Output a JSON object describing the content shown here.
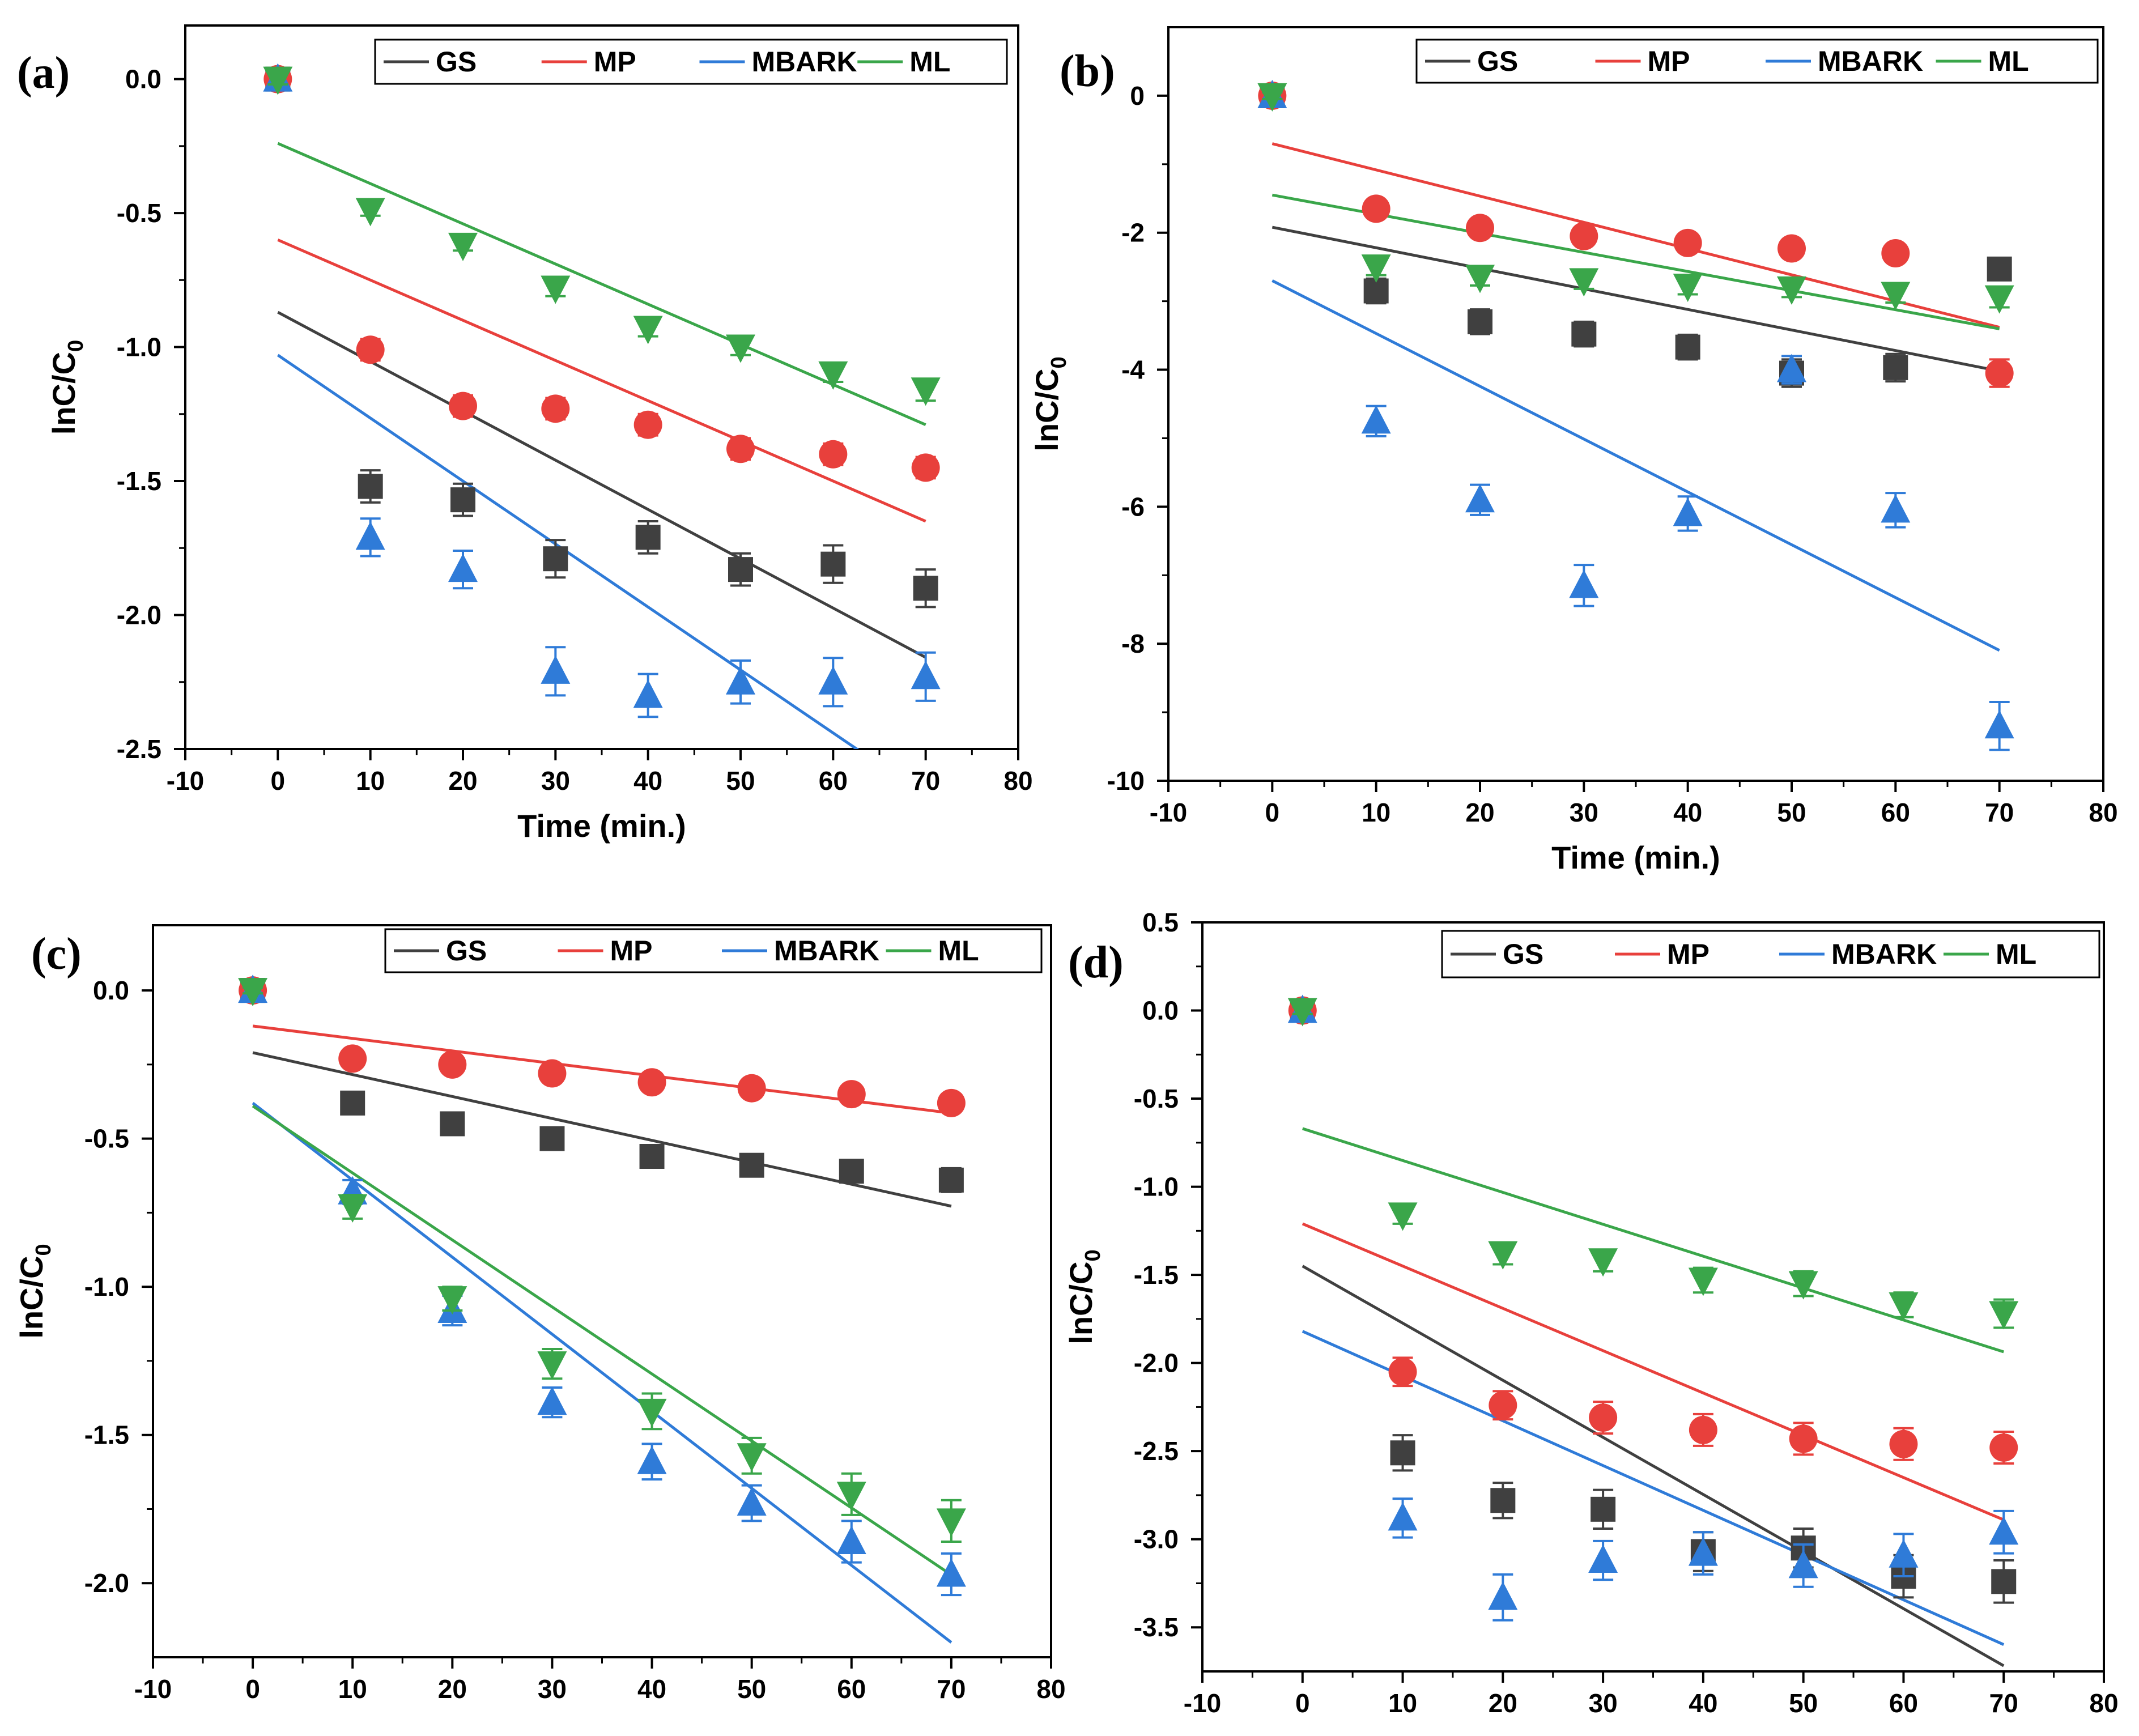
{
  "figure": {
    "series_names": [
      "GS",
      "MP",
      "MBARK",
      "ML"
    ],
    "series_colors": {
      "GS": "#404040",
      "MP": "#e8403c",
      "MBARK": "#2f7bd8",
      "ML": "#3aa64a"
    }
  },
  "chart_data": [
    {
      "type": "scatter",
      "panel_label": "(a)",
      "xlabel": "Time (min.)",
      "ylabel": "lnC/C0",
      "xlim": [
        -10,
        80
      ],
      "ylim": [
        -2.5,
        0.2
      ],
      "xticks": [
        -10,
        0,
        10,
        20,
        30,
        40,
        50,
        60,
        70,
        80
      ],
      "yticks": [
        0.0,
        -0.5,
        -1.0,
        -1.5,
        -2.0,
        -2.5
      ],
      "ytick_labels": [
        "0.0",
        "-0.5",
        "-1.0",
        "-1.5",
        "-2.0",
        "-2.5"
      ],
      "legend": [
        "GS",
        "MP",
        "MBARK",
        "ML"
      ],
      "legend_position": "top-right",
      "x": [
        0,
        10,
        20,
        30,
        40,
        50,
        60,
        70
      ],
      "series": [
        {
          "name": "GS",
          "marker": "square",
          "values": [
            0,
            -1.52,
            -1.57,
            -1.79,
            -1.71,
            -1.83,
            -1.81,
            -1.9
          ],
          "err": [
            0.02,
            0.06,
            0.06,
            0.07,
            0.06,
            0.06,
            0.07,
            0.07
          ],
          "fit": {
            "intercept": -0.87,
            "slope": -0.0184
          }
        },
        {
          "name": "MP",
          "marker": "circle",
          "values": [
            0,
            -1.01,
            -1.22,
            -1.23,
            -1.29,
            -1.38,
            -1.4,
            -1.45
          ],
          "err": [
            0.02,
            0.04,
            0.04,
            0.04,
            0.04,
            0.04,
            0.04,
            0.04
          ],
          "fit": {
            "intercept": -0.6,
            "slope": -0.015
          }
        },
        {
          "name": "MBARK",
          "marker": "triangle-up",
          "values": [
            0,
            -1.71,
            -1.83,
            -2.21,
            -2.3,
            -2.25,
            -2.25,
            -2.23
          ],
          "err": [
            0.02,
            0.07,
            0.07,
            0.09,
            0.08,
            0.08,
            0.09,
            0.09
          ],
          "fit": {
            "intercept": -1.03,
            "slope": -0.0235
          }
        },
        {
          "name": "ML",
          "marker": "triangle-down",
          "values": [
            0,
            -0.49,
            -0.62,
            -0.78,
            -0.93,
            -1.0,
            -1.1,
            -1.16
          ],
          "err": [
            0.02,
            0.02,
            0.02,
            0.03,
            0.03,
            0.03,
            0.03,
            0.04
          ],
          "fit": {
            "intercept": -0.24,
            "slope": -0.015
          }
        }
      ]
    },
    {
      "type": "scatter",
      "panel_label": "(b)",
      "xlabel": "Time (min.)",
      "ylabel": "lnC/C0",
      "xlim": [
        -10,
        80
      ],
      "ylim": [
        -10,
        1
      ],
      "xticks": [
        -10,
        0,
        10,
        20,
        30,
        40,
        50,
        60,
        70,
        80
      ],
      "yticks": [
        0,
        -2,
        -4,
        -6,
        -8,
        -10
      ],
      "ytick_labels": [
        "0",
        "-2",
        "-4",
        "-6",
        "-8",
        "-10"
      ],
      "legend": [
        "GS",
        "MP",
        "MBARK",
        "ML"
      ],
      "legend_position": "top-right",
      "x": [
        0,
        10,
        20,
        30,
        40,
        50,
        60,
        70
      ],
      "series": [
        {
          "name": "GS",
          "marker": "square",
          "values": [
            0,
            -2.85,
            -3.3,
            -3.48,
            -3.67,
            -4.05,
            -3.97,
            -2.53
          ],
          "err": [
            0.05,
            0.18,
            0.18,
            0.18,
            0.18,
            0.2,
            0.2,
            0.12
          ],
          "fit": {
            "intercept": -1.92,
            "slope": -0.03
          }
        },
        {
          "name": "MP",
          "marker": "circle",
          "values": [
            0,
            -1.65,
            -1.93,
            -2.05,
            -2.15,
            -2.23,
            -2.3,
            -4.05
          ],
          "err": [
            0.05,
            0.09,
            0.09,
            0.09,
            0.09,
            0.09,
            0.09,
            0.2
          ],
          "fit": {
            "intercept": -0.7,
            "slope": -0.0383
          }
        },
        {
          "name": "MBARK",
          "marker": "triangle-up",
          "values": [
            0,
            -4.75,
            -5.9,
            -7.15,
            -6.1,
            -4.0,
            -6.05,
            -9.2
          ],
          "err": [
            0.05,
            0.22,
            0.22,
            0.3,
            0.25,
            0.2,
            0.25,
            0.35
          ],
          "fit": {
            "intercept": -2.7,
            "slope": -0.0771
          }
        },
        {
          "name": "ML",
          "marker": "triangle-down",
          "values": [
            0,
            -2.5,
            -2.65,
            -2.7,
            -2.78,
            -2.82,
            -2.9,
            -2.95
          ],
          "err": [
            0.05,
            0.12,
            0.12,
            0.12,
            0.12,
            0.12,
            0.12,
            0.14
          ],
          "fit": {
            "intercept": -1.45,
            "slope": -0.0279
          }
        }
      ]
    },
    {
      "type": "scatter",
      "panel_label": "(c)",
      "xlabel": "",
      "ylabel": "lnC/C0",
      "xlim": [
        -10,
        80
      ],
      "ylim": [
        -2.25,
        0.22
      ],
      "xticks": [
        -10,
        0,
        10,
        20,
        30,
        40,
        50,
        60,
        70,
        80
      ],
      "yticks": [
        0.0,
        -0.5,
        -1.0,
        -1.5,
        -2.0
      ],
      "ytick_labels": [
        "0.0",
        "-0.5",
        "-1.0",
        "-1.5",
        "-2.0"
      ],
      "legend": [
        "GS",
        "MP",
        "MBARK",
        "ML"
      ],
      "legend_position": "top-right",
      "x": [
        0,
        10,
        20,
        30,
        40,
        50,
        60,
        70
      ],
      "series": [
        {
          "name": "GS",
          "marker": "square",
          "values": [
            0,
            -0.38,
            -0.45,
            -0.5,
            -0.56,
            -0.59,
            -0.61,
            -0.64
          ],
          "err": [
            0.01,
            0.02,
            0.02,
            0.03,
            0.03,
            0.03,
            0.03,
            0.04
          ],
          "fit": {
            "intercept": -0.21,
            "slope": -0.0074
          }
        },
        {
          "name": "MP",
          "marker": "circle",
          "values": [
            0,
            -0.23,
            -0.25,
            -0.28,
            -0.31,
            -0.33,
            -0.35,
            -0.38
          ],
          "err": [
            0.01,
            0.02,
            0.02,
            0.02,
            0.02,
            0.02,
            0.02,
            0.03
          ],
          "fit": {
            "intercept": -0.12,
            "slope": -0.0042
          }
        },
        {
          "name": "MBARK",
          "marker": "triangle-up",
          "values": [
            0,
            -0.68,
            -1.08,
            -1.39,
            -1.59,
            -1.73,
            -1.86,
            -1.97
          ],
          "err": [
            0.01,
            0.04,
            0.05,
            0.05,
            0.06,
            0.06,
            0.07,
            0.07
          ],
          "fit": {
            "intercept": -0.38,
            "slope": -0.026
          }
        },
        {
          "name": "ML",
          "marker": "triangle-down",
          "values": [
            0,
            -0.73,
            -1.04,
            -1.26,
            -1.42,
            -1.57,
            -1.7,
            -1.79
          ],
          "err": [
            0.01,
            0.04,
            0.04,
            0.05,
            0.06,
            0.06,
            0.07,
            0.07
          ],
          "fit": {
            "intercept": -0.39,
            "slope": -0.0226
          }
        }
      ]
    },
    {
      "type": "scatter",
      "panel_label": "(d)",
      "xlabel": "",
      "ylabel": "lnC/C0",
      "xlim": [
        -10,
        80
      ],
      "ylim": [
        -3.75,
        0.5
      ],
      "xticks": [
        -10,
        0,
        10,
        20,
        30,
        40,
        50,
        60,
        70,
        80
      ],
      "yticks": [
        0.5,
        0.0,
        -0.5,
        -1.0,
        -1.5,
        -2.0,
        -2.5,
        -3.0,
        -3.5
      ],
      "ytick_labels": [
        "0.5",
        "0.0",
        "-0.5",
        "-1.0",
        "-1.5",
        "-2.0",
        "-2.5",
        "-3.0",
        "-3.5"
      ],
      "legend": [
        "GS",
        "MP",
        "MBARK",
        "ML"
      ],
      "legend_position": "top-right",
      "x": [
        0,
        10,
        20,
        30,
        40,
        50,
        60,
        70
      ],
      "series": [
        {
          "name": "GS",
          "marker": "square",
          "values": [
            0,
            -2.51,
            -2.78,
            -2.83,
            -3.07,
            -3.05,
            -3.21,
            -3.24
          ],
          "err": [
            0.02,
            0.1,
            0.1,
            0.11,
            0.11,
            0.11,
            0.12,
            0.12
          ],
          "fit": {
            "intercept": -1.45,
            "slope": -0.0324
          }
        },
        {
          "name": "MP",
          "marker": "circle",
          "values": [
            0,
            -2.05,
            -2.24,
            -2.31,
            -2.38,
            -2.43,
            -2.46,
            -2.48
          ],
          "err": [
            0.02,
            0.08,
            0.08,
            0.09,
            0.09,
            0.09,
            0.09,
            0.09
          ],
          "fit": {
            "intercept": -1.21,
            "slope": -0.024
          }
        },
        {
          "name": "MBARK",
          "marker": "triangle-up",
          "values": [
            0,
            -2.88,
            -3.33,
            -3.12,
            -3.08,
            -3.15,
            -3.09,
            -2.96
          ],
          "err": [
            0.02,
            0.11,
            0.13,
            0.11,
            0.12,
            0.12,
            0.12,
            0.12
          ],
          "fit": {
            "intercept": -1.82,
            "slope": -0.0254
          }
        },
        {
          "name": "ML",
          "marker": "triangle-down",
          "values": [
            0,
            -1.16,
            -1.38,
            -1.42,
            -1.53,
            -1.55,
            -1.67,
            -1.72
          ],
          "err": [
            0.02,
            0.05,
            0.06,
            0.06,
            0.07,
            0.07,
            0.07,
            0.08
          ],
          "fit": {
            "intercept": -0.67,
            "slope": -0.0181
          }
        }
      ]
    }
  ]
}
